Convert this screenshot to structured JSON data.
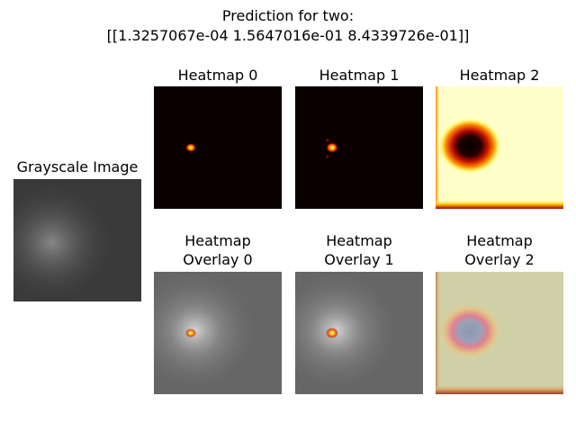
{
  "figure": {
    "title_line1": "Prediction for two:",
    "title_line2": "[[1.3257067e-04 1.5647016e-01 8.4339726e-01]]"
  },
  "chart_data": {
    "type": "heatmap",
    "title": "Prediction for two:\n[[1.3257067e-04 1.5647016e-01 8.4339726e-01]]",
    "prediction": [
      0.00013257067,
      0.15647016,
      0.84339726
    ],
    "panels": [
      {
        "title": "Grayscale Image",
        "kind": "grayscale"
      },
      {
        "title": "Heatmap 0",
        "kind": "heatmap",
        "colormap": "hot"
      },
      {
        "title": "Heatmap 1",
        "kind": "heatmap",
        "colormap": "hot"
      },
      {
        "title": "Heatmap 2",
        "kind": "heatmap",
        "colormap": "hot"
      },
      {
        "title_line1": "Heatmap",
        "title_line2": "Overlay 0",
        "kind": "overlay"
      },
      {
        "title_line1": "Heatmap",
        "title_line2": "Overlay 1",
        "kind": "overlay"
      },
      {
        "title_line1": "Heatmap",
        "title_line2": "Overlay 2",
        "kind": "overlay"
      }
    ],
    "colors": {
      "hot_dark": "#0b0000",
      "hot_bright": "#ffffff",
      "background_panel": "#ffffff",
      "gray_image": "#3a3a3a"
    }
  }
}
